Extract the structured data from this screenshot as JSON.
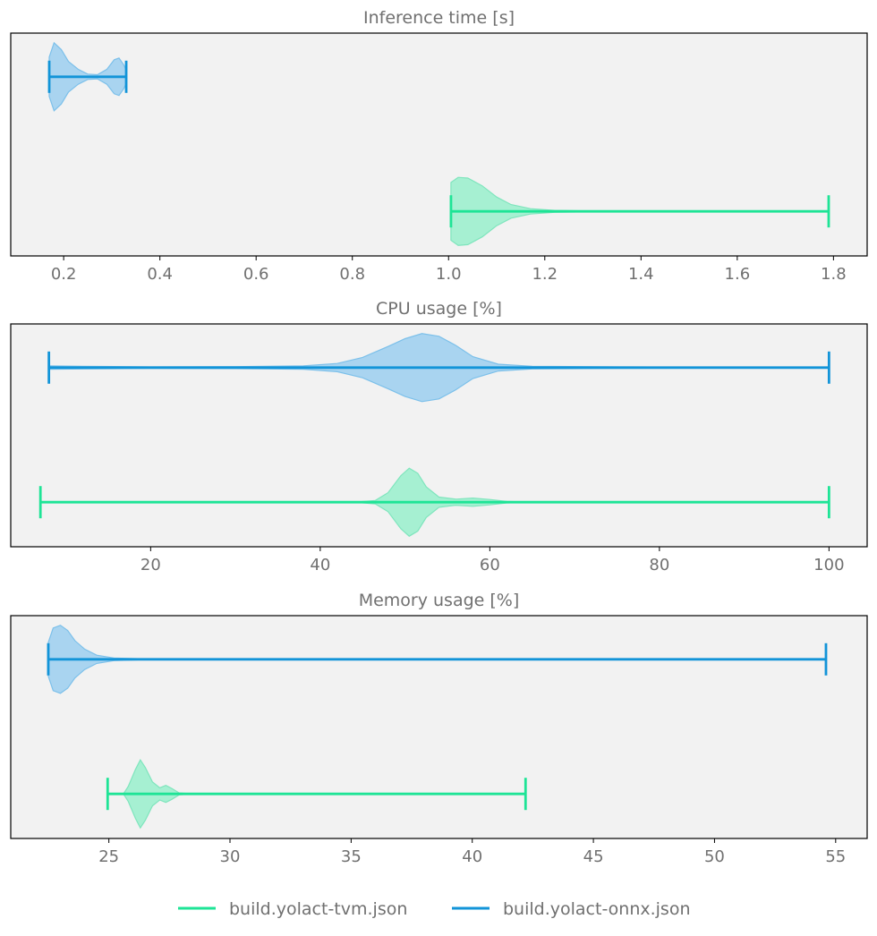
{
  "chart_data": [
    {
      "type": "violin",
      "title": "Inference time [s]",
      "xlim": [
        0.09,
        1.87
      ],
      "xticks": [
        0.2,
        0.4,
        0.6,
        0.8,
        1.0,
        1.2,
        1.4,
        1.6,
        1.8
      ],
      "xtick_labels": [
        "0.2",
        "0.4",
        "0.6",
        "0.8",
        "1.0",
        "1.2",
        "1.4",
        "1.6",
        "1.8"
      ],
      "grid": false,
      "series": [
        {
          "name": "build.yolact-onnx.json",
          "min": 0.17,
          "max": 0.33,
          "density": [
            [
              0.17,
              0.58
            ],
            [
              0.18,
              1.0
            ],
            [
              0.195,
              0.8
            ],
            [
              0.21,
              0.45
            ],
            [
              0.23,
              0.22
            ],
            [
              0.25,
              0.08
            ],
            [
              0.27,
              0.06
            ],
            [
              0.29,
              0.22
            ],
            [
              0.305,
              0.5
            ],
            [
              0.315,
              0.55
            ],
            [
              0.325,
              0.35
            ],
            [
              0.33,
              0.2
            ]
          ]
        },
        {
          "name": "build.yolact-tvm.json",
          "min": 1.005,
          "max": 1.79,
          "density": [
            [
              1.005,
              0.85
            ],
            [
              1.02,
              1.0
            ],
            [
              1.04,
              0.98
            ],
            [
              1.07,
              0.75
            ],
            [
              1.1,
              0.42
            ],
            [
              1.13,
              0.2
            ],
            [
              1.17,
              0.08
            ],
            [
              1.22,
              0.03
            ],
            [
              1.3,
              0.01
            ],
            [
              1.79,
              0.0
            ]
          ]
        }
      ]
    },
    {
      "type": "violin",
      "title": "CPU usage [%]",
      "xlim": [
        3.5,
        104.5
      ],
      "xticks": [
        20,
        40,
        60,
        80,
        100
      ],
      "xtick_labels": [
        "20",
        "40",
        "60",
        "80",
        "100"
      ],
      "grid": false,
      "series": [
        {
          "name": "build.yolact-onnx.json",
          "min": 8.0,
          "max": 100.0,
          "density": [
            [
              8,
              0.05
            ],
            [
              12,
              0.04
            ],
            [
              20,
              0.02
            ],
            [
              30,
              0.03
            ],
            [
              38,
              0.05
            ],
            [
              42,
              0.12
            ],
            [
              45,
              0.3
            ],
            [
              48,
              0.62
            ],
            [
              50,
              0.85
            ],
            [
              52,
              1.0
            ],
            [
              54,
              0.92
            ],
            [
              56,
              0.65
            ],
            [
              58,
              0.32
            ],
            [
              61,
              0.1
            ],
            [
              65,
              0.04
            ],
            [
              75,
              0.02
            ],
            [
              100,
              0.0
            ]
          ]
        },
        {
          "name": "build.yolact-tvm.json",
          "min": 7.0,
          "max": 100.0,
          "density": [
            [
              7,
              0.0
            ],
            [
              44,
              0.0
            ],
            [
              46.5,
              0.05
            ],
            [
              48,
              0.28
            ],
            [
              49.5,
              0.78
            ],
            [
              50.5,
              1.0
            ],
            [
              51.5,
              0.85
            ],
            [
              52.5,
              0.45
            ],
            [
              54,
              0.15
            ],
            [
              56,
              0.09
            ],
            [
              58,
              0.12
            ],
            [
              60,
              0.08
            ],
            [
              62,
              0.02
            ],
            [
              65,
              0.0
            ],
            [
              100,
              0.0
            ]
          ]
        }
      ]
    },
    {
      "type": "violin",
      "title": "Memory usage [%]",
      "xlim": [
        20.95,
        56.3
      ],
      "xticks": [
        25,
        30,
        35,
        40,
        45,
        50,
        55
      ],
      "xtick_labels": [
        "25",
        "30",
        "35",
        "40",
        "45",
        "50",
        "55"
      ],
      "grid": false,
      "series": [
        {
          "name": "build.yolact-onnx.json",
          "min": 22.5,
          "max": 54.6,
          "density": [
            [
              22.5,
              0.5
            ],
            [
              22.7,
              0.92
            ],
            [
              23.0,
              1.0
            ],
            [
              23.3,
              0.85
            ],
            [
              23.6,
              0.55
            ],
            [
              24.0,
              0.3
            ],
            [
              24.5,
              0.12
            ],
            [
              25.2,
              0.04
            ],
            [
              26.5,
              0.01
            ],
            [
              54.6,
              0.0
            ]
          ]
        },
        {
          "name": "build.yolact-tvm.json",
          "min": 24.95,
          "max": 42.2,
          "density": [
            [
              24.95,
              0.0
            ],
            [
              25.6,
              0.0
            ],
            [
              25.8,
              0.22
            ],
            [
              26.1,
              0.72
            ],
            [
              26.3,
              1.0
            ],
            [
              26.5,
              0.78
            ],
            [
              26.8,
              0.35
            ],
            [
              27.1,
              0.18
            ],
            [
              27.35,
              0.25
            ],
            [
              27.6,
              0.16
            ],
            [
              27.9,
              0.03
            ],
            [
              28.5,
              0.0
            ],
            [
              42.2,
              0.0
            ]
          ]
        }
      ]
    }
  ],
  "legend": {
    "placement": "bottom-center",
    "entries": [
      {
        "label": "build.yolact-tvm.json",
        "color": "#1ee496"
      },
      {
        "label": "build.yolact-onnx.json",
        "color": "#1294d8"
      }
    ]
  },
  "colors": {
    "build.yolact-onnx.json": {
      "line": "#1294d8",
      "fill": "#a9d4f0",
      "edge": "#7cc0ea"
    },
    "build.yolact-tvm.json": {
      "line": "#1ee496",
      "fill": "#a6f0d2",
      "edge": "#7fe5bd"
    },
    "axes_face": "#f2f2f2",
    "text": "#707070"
  }
}
